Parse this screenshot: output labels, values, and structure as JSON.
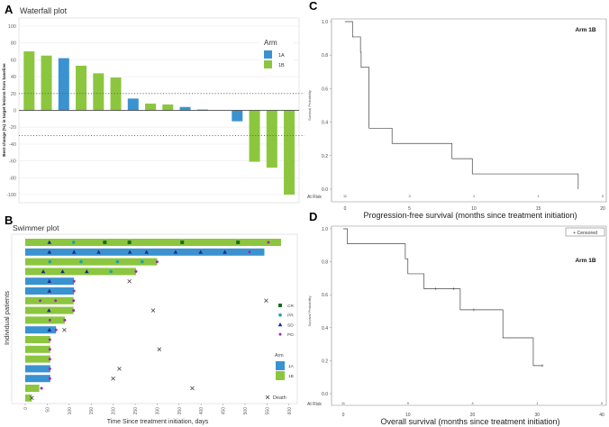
{
  "colors": {
    "arm_1A": "#3a93d0",
    "arm_1B": "#8cc63f",
    "CR": "#1a6e1a",
    "PR": "#1fa3a3",
    "SD": "#1c2a8c",
    "PD": "#a12aa6",
    "grid": "#ebebeb",
    "km": "#444444"
  },
  "chart_data": [
    {
      "type": "bar",
      "panel": "A",
      "title": "Waterfall plot",
      "xlabel": "",
      "ylabel": "Best change (%) in target lesions from baseline",
      "ylim": [
        -100,
        100
      ],
      "yticks": [
        100,
        80,
        60,
        40,
        20,
        0,
        -20,
        -40,
        -60,
        -80,
        -100
      ],
      "reference_lines": [
        20,
        -30
      ],
      "values": [
        70,
        65,
        62,
        53,
        44,
        39,
        14,
        8,
        7,
        4,
        1,
        0,
        -13,
        -61,
        -68,
        -100
      ],
      "arms": [
        "1B",
        "1B",
        "1A",
        "1B",
        "1B",
        "1B",
        "1A",
        "1B",
        "1B",
        "1A",
        "1A",
        "1B",
        "1A",
        "1B",
        "1B",
        "1B"
      ],
      "legend": {
        "title": "Arm",
        "entries": [
          "1A",
          "1B"
        ],
        "placement": "top-right"
      }
    },
    {
      "type": "bar",
      "panel": "B",
      "title": "Swimmer plot",
      "xlabel": "Time Since treatment initiation, days",
      "ylabel": "Individual patients",
      "xlim": [
        0,
        600
      ],
      "xticks": [
        0,
        50,
        100,
        150,
        200,
        250,
        300,
        350,
        400,
        450,
        500,
        550,
        600
      ],
      "patients": [
        {
          "arm": "1B",
          "duration": 582,
          "events": {
            "SD": [
              55
            ],
            "PR": [
              110
            ],
            "CR": [
              181,
              237,
              357,
              484
            ],
            "PD": [
              553
            ]
          }
        },
        {
          "arm": "1A",
          "duration": 544,
          "events": {
            "SD": [
              55,
              111,
              167,
              238,
              276,
              342,
              399,
              454
            ],
            "PD": [
              510
            ]
          }
        },
        {
          "arm": "1B",
          "duration": 300,
          "events": {
            "PR": [
              56,
              127,
              210,
              266
            ],
            "PD": [
              300
            ]
          }
        },
        {
          "arm": "1B",
          "duration": 252,
          "events": {
            "SD": [
              41,
              85,
              140
            ],
            "PR": [
              195
            ],
            "PD": [
              252
            ]
          }
        },
        {
          "arm": "1A",
          "duration": 111,
          "events": {
            "SD": [
              55
            ],
            "PD": [
              111
            ]
          },
          "death": 237
        },
        {
          "arm": "1A",
          "duration": 111,
          "events": {
            "SD": [
              55
            ],
            "PD": [
              111
            ]
          }
        },
        {
          "arm": "1B",
          "duration": 110,
          "events": {
            "PD": [
              34,
              69,
              110
            ]
          },
          "death": 548
        },
        {
          "arm": "1B",
          "duration": 110,
          "events": {
            "SD": [
              54
            ],
            "PD": [
              110
            ]
          },
          "death": 291
        },
        {
          "arm": "1B",
          "duration": 90,
          "events": {
            "PD": [
              56,
              90
            ]
          }
        },
        {
          "arm": "1A",
          "duration": 70,
          "events": {
            "SD": [
              55
            ],
            "PD": [
              70
            ]
          },
          "death": 89
        },
        {
          "arm": "1B",
          "duration": 57,
          "events": {
            "PD": [
              56
            ]
          }
        },
        {
          "arm": "1B",
          "duration": 57,
          "events": {
            "PD": [
              56
            ]
          },
          "death": 305
        },
        {
          "arm": "1B",
          "duration": 57,
          "events": {
            "PD": [
              56
            ]
          }
        },
        {
          "arm": "1A",
          "duration": 57,
          "events": {
            "PD": [
              56
            ]
          },
          "death": 214
        },
        {
          "arm": "1A",
          "duration": 57,
          "events": {
            "PD": [
              56
            ]
          },
          "death": 200
        },
        {
          "arm": "1B",
          "duration": 32,
          "events": {
            "PD": [
              37
            ]
          },
          "death": 380
        },
        {
          "arm": "1B",
          "duration": 15,
          "events": {},
          "death": 15
        }
      ],
      "legend": {
        "response": [
          "CR",
          "PR",
          "SD",
          "PD"
        ],
        "arm_title": "Arm",
        "arms": [
          "1A",
          "1B"
        ],
        "death": "Death",
        "death_symbol": "×"
      }
    },
    {
      "type": "line",
      "panel": "C",
      "subtitle": "Arm 1B",
      "xlabel": "Progression-free survival (months since treatment initiation)",
      "ylabel": "Survival Probability",
      "xlim": [
        0,
        20
      ],
      "ylim": [
        0,
        1
      ],
      "xticks": [
        0,
        5,
        10,
        15,
        20
      ],
      "yticks": [
        "0.0",
        "0.2",
        "0.4",
        "0.6",
        "0.8",
        "1.0"
      ],
      "steps": [
        [
          0,
          1.0
        ],
        [
          0.58,
          0.909
        ],
        [
          1.2,
          0.818
        ],
        [
          1.25,
          0.727
        ],
        [
          1.86,
          0.364
        ],
        [
          3.65,
          0.273
        ],
        [
          8.3,
          0.182
        ],
        [
          9.88,
          0.091
        ],
        [
          18.1,
          0.0
        ]
      ],
      "censored": [],
      "at_risk_label": "At Risk",
      "at_risk": [
        11,
        3,
        1,
        1,
        0
      ]
    },
    {
      "type": "line",
      "panel": "D",
      "subtitle": "Arm 1B",
      "xlabel": "Overall survival (months since treatment initiation)",
      "ylabel": "Survival Probability",
      "xlim": [
        0,
        40
      ],
      "ylim": [
        0,
        1
      ],
      "xticks": [
        0,
        10,
        20,
        30,
        40
      ],
      "yticks": [
        "0.0",
        "0.2",
        "0.4",
        "0.6",
        "0.8",
        "1.0"
      ],
      "steps": [
        [
          0,
          1.0
        ],
        [
          0.65,
          0.909
        ],
        [
          9.6,
          0.818
        ],
        [
          10.0,
          0.727
        ],
        [
          12.5,
          0.636
        ],
        [
          18.1,
          0.509
        ],
        [
          24.7,
          0.339
        ],
        [
          29.4,
          0.17
        ]
      ],
      "end": 30.8,
      "censored": [
        [
          14.3,
          0.636
        ],
        [
          17.1,
          0.636
        ],
        [
          20.2,
          0.509
        ],
        [
          30.8,
          0.17
        ]
      ],
      "legend": "+ Censored",
      "at_risk_label": "At Risk",
      "at_risk": [
        11,
        9,
        4,
        1,
        0
      ]
    }
  ]
}
